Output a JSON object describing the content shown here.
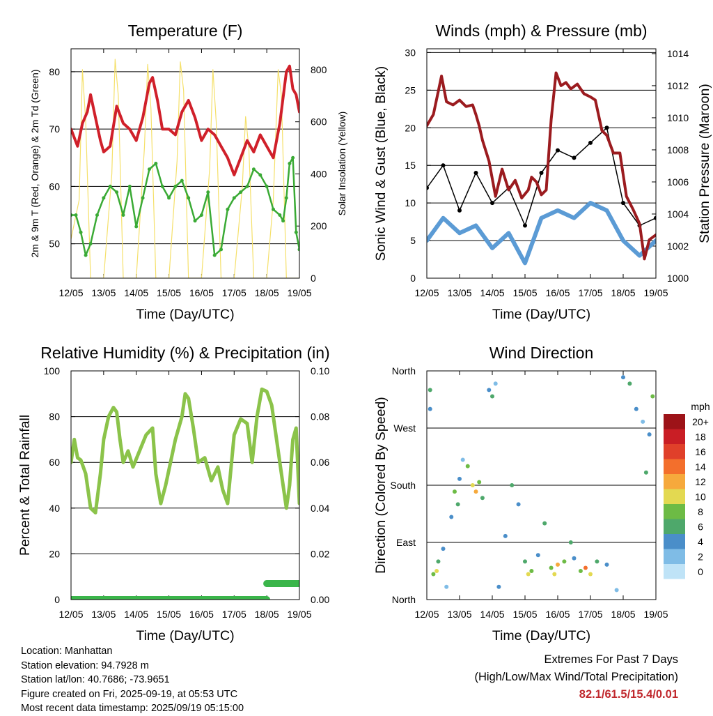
{
  "chart_data": [
    {
      "id": "temperature",
      "type": "line",
      "title": "Temperature (F)",
      "xlabel": "Time (Day/UTC)",
      "ylabel": "2m & 9m T (Red, Orange) & 2m Td (Green)",
      "y2label": "Solar Insolation (Yellow)",
      "xticks": [
        "12/05",
        "13/05",
        "14/05",
        "15/05",
        "16/05",
        "17/05",
        "18/05",
        "19/05"
      ],
      "ylim": [
        44,
        84
      ],
      "yticks": [
        50,
        60,
        70,
        80
      ],
      "y2lim": [
        0,
        880
      ],
      "y2ticks": [
        0,
        200,
        400,
        600,
        800
      ],
      "grid": true,
      "series": [
        {
          "color": "#d0202a",
          "x": [
            0,
            0.2,
            0.35,
            0.5,
            0.6,
            0.75,
            0.9,
            1,
            1.2,
            1.4,
            1.6,
            1.8,
            2,
            2.2,
            2.4,
            2.5,
            2.65,
            2.8,
            3,
            3.2,
            3.4,
            3.6,
            3.8,
            4,
            4.2,
            4.4,
            4.6,
            4.8,
            5,
            5.2,
            5.4,
            5.6,
            5.8,
            6,
            6.2,
            6.4,
            6.6,
            6.7,
            6.8,
            6.9,
            7
          ],
          "y": [
            70,
            67,
            71,
            73,
            76,
            72,
            68,
            66,
            67,
            74,
            71,
            70,
            68,
            72,
            78,
            79,
            75,
            70,
            70,
            69,
            73,
            75,
            72,
            68,
            70,
            69,
            67,
            65,
            62,
            65,
            68,
            66,
            69,
            67,
            65,
            71,
            80,
            81,
            77,
            76,
            73
          ]
        },
        {
          "color": "#3aaa35",
          "x": [
            0,
            0.15,
            0.3,
            0.45,
            0.6,
            0.8,
            1,
            1.2,
            1.4,
            1.6,
            1.8,
            2,
            2.2,
            2.4,
            2.6,
            2.8,
            3,
            3.2,
            3.4,
            3.6,
            3.8,
            4,
            4.2,
            4.4,
            4.6,
            4.8,
            5,
            5.2,
            5.4,
            5.6,
            5.8,
            6,
            6.2,
            6.4,
            6.5,
            6.6,
            6.7,
            6.8,
            6.9,
            7
          ],
          "y": [
            55,
            55,
            52,
            48,
            50,
            55,
            58,
            60,
            59,
            55,
            60,
            53,
            58,
            63,
            64,
            60,
            58,
            60,
            61,
            58,
            54,
            55,
            59,
            48,
            49,
            56,
            58,
            59,
            60,
            63,
            62,
            60,
            56,
            55,
            54,
            58,
            64,
            65,
            52,
            49
          ]
        },
        {
          "color": "#f5e06a",
          "x": [
            0,
            0.25,
            0.35,
            0.45,
            0.6,
            1,
            1.25,
            1.35,
            1.45,
            1.6,
            2,
            2.25,
            2.35,
            2.45,
            2.6,
            3,
            3.25,
            3.35,
            3.45,
            3.6,
            4,
            4.25,
            4.35,
            4.45,
            4.6,
            5,
            5.25,
            5.35,
            5.45,
            5.6,
            6,
            6.2,
            6.35,
            6.45,
            6.6,
            7
          ],
          "y": [
            150,
            300,
            800,
            600,
            0,
            0,
            400,
            840,
            700,
            0,
            0,
            500,
            820,
            650,
            0,
            0,
            450,
            830,
            720,
            0,
            0,
            420,
            800,
            600,
            0,
            0,
            350,
            620,
            500,
            0,
            0,
            300,
            800,
            700,
            0,
            0
          ]
        }
      ]
    },
    {
      "id": "winds",
      "type": "scatter",
      "title": "Winds (mph) & Pressure (mb)",
      "xlabel": "Time (Day/UTC)",
      "ylabel": "Sonic Wind & Gust (Blue, Black)",
      "y2label": "Station Pressure (Maroon)",
      "xticks": [
        "12/05",
        "13/05",
        "14/05",
        "15/05",
        "16/05",
        "17/05",
        "18/05",
        "19/05"
      ],
      "ylim": [
        0,
        30.5
      ],
      "yticks": [
        0,
        5,
        10,
        15,
        20,
        25,
        30
      ],
      "y2lim": [
        1000,
        1014.3
      ],
      "y2ticks": [
        1000,
        1002,
        1004,
        1006,
        1008,
        1010,
        1012,
        1014
      ],
      "grid": true,
      "series": [
        {
          "color": "#5b9bd5",
          "x": [
            0,
            0.5,
            1,
            1.5,
            2,
            2.5,
            3,
            3.5,
            4,
            4.5,
            5,
            5.5,
            6,
            6.5,
            7
          ],
          "y": [
            5,
            8,
            6,
            7,
            4,
            6,
            2,
            8,
            9,
            8,
            10,
            9,
            5,
            3,
            5
          ]
        },
        {
          "color": "#000000",
          "x": [
            0,
            0.5,
            1,
            1.5,
            2,
            2.5,
            3,
            3.5,
            4,
            4.5,
            5,
            5.5,
            6,
            6.5,
            7
          ],
          "y": [
            12,
            15,
            9,
            14,
            10,
            12,
            7,
            14,
            17,
            16,
            18,
            20,
            10,
            7,
            8
          ]
        },
        {
          "color": "#9b1b1f",
          "x": [
            0,
            0.2,
            0.45,
            0.6,
            0.8,
            1,
            1.2,
            1.4,
            1.5,
            1.6,
            1.7,
            1.9,
            2.1,
            2.3,
            2.5,
            2.7,
            2.9,
            3.1,
            3.2,
            3.35,
            3.5,
            3.65,
            3.8,
            3.95,
            4.1,
            4.25,
            4.4,
            4.6,
            4.8,
            5,
            5.15,
            5.35,
            5.5,
            5.7,
            5.9,
            6.1,
            6.3,
            6.5,
            6.65,
            6.8,
            7
          ],
          "y": [
            1009.5,
            1010.2,
            1012.6,
            1011,
            1010.8,
            1011.1,
            1010.7,
            1010.8,
            1010.2,
            1009.5,
            1008.6,
            1007.3,
            1005.1,
            1006.8,
            1005.5,
            1006.1,
            1005,
            1005.5,
            1006.3,
            1006,
            1005.2,
            1005.5,
            1009.9,
            1012.8,
            1012,
            1012.2,
            1011.8,
            1012.1,
            1011.5,
            1011.3,
            1011.1,
            1009.2,
            1008.9,
            1007.8,
            1007.8,
            1005.1,
            1004.3,
            1003.4,
            1001.2,
            1002.4,
            1002.7
          ]
        }
      ]
    },
    {
      "id": "humidity",
      "type": "line",
      "title": "Relative Humidity (%) & Precipitation (in)",
      "xlabel": "Time (Day/UTC)",
      "ylabel": "Percent & Total Rainfall",
      "xticks": [
        "12/05",
        "13/05",
        "14/05",
        "15/05",
        "16/05",
        "17/05",
        "18/05",
        "19/05"
      ],
      "ylim": [
        0,
        100
      ],
      "yticks": [
        0,
        20,
        40,
        60,
        80,
        100
      ],
      "y2lim": [
        0,
        0.1
      ],
      "y2ticks": [
        "0.00",
        "0.02",
        "0.04",
        "0.06",
        "0.08",
        "0.10"
      ],
      "grid": true,
      "series": [
        {
          "color": "#8bc34a",
          "x": [
            0,
            0.1,
            0.2,
            0.3,
            0.45,
            0.6,
            0.75,
            0.9,
            1,
            1.15,
            1.3,
            1.4,
            1.5,
            1.6,
            1.75,
            1.9,
            2.1,
            2.3,
            2.5,
            2.6,
            2.75,
            2.9,
            3.05,
            3.2,
            3.4,
            3.5,
            3.6,
            3.75,
            3.9,
            4.1,
            4.3,
            4.5,
            4.65,
            4.8,
            5,
            5.2,
            5.4,
            5.55,
            5.7,
            5.85,
            6,
            6.15,
            6.3,
            6.45,
            6.6,
            6.7,
            6.8,
            6.9,
            7
          ],
          "y": [
            60,
            70,
            62,
            61,
            55,
            40,
            38,
            55,
            70,
            80,
            84,
            82,
            70,
            60,
            65,
            58,
            65,
            72,
            75,
            55,
            42,
            50,
            60,
            70,
            80,
            90,
            88,
            75,
            60,
            62,
            52,
            58,
            48,
            42,
            72,
            79,
            77,
            60,
            80,
            92,
            91,
            85,
            70,
            55,
            40,
            50,
            70,
            75,
            42
          ]
        },
        {
          "color": "#3ab54a",
          "x": [
            0,
            6
          ],
          "y": [
            0,
            0
          ]
        },
        {
          "color": "#3ab54a",
          "x": [
            6,
            7
          ],
          "y": [
            7,
            7
          ]
        }
      ]
    },
    {
      "id": "direction",
      "type": "scatter",
      "title": "Wind Direction",
      "xlabel": "Time (Day/UTC)",
      "ylabel": "Direction (Colored By Speed)",
      "xticks": [
        "12/05",
        "13/05",
        "14/05",
        "15/05",
        "16/05",
        "17/05",
        "18/05",
        "19/05"
      ],
      "yticks": [
        "North",
        "East",
        "South",
        "West",
        "North"
      ],
      "ylim": [
        0,
        360
      ],
      "grid": true,
      "colorbar": {
        "title": "mph",
        "labels": [
          "0",
          "2",
          "4",
          "6",
          "8",
          "10",
          "12",
          "14",
          "16",
          "18",
          "20+"
        ],
        "colors": [
          "#bfe3f7",
          "#7fbce6",
          "#4a8ec9",
          "#4ea86b",
          "#6dbb45",
          "#e3d951",
          "#f6a93c",
          "#f36f2c",
          "#e0402a",
          "#c91e25",
          "#9d1318"
        ]
      },
      "points": [
        {
          "x": 0.1,
          "y": 330,
          "s": 6
        },
        {
          "x": 0.1,
          "y": 300,
          "s": 4
        },
        {
          "x": 0.2,
          "y": 40,
          "s": 8
        },
        {
          "x": 0.3,
          "y": 45,
          "s": 10
        },
        {
          "x": 0.35,
          "y": 60,
          "s": 6
        },
        {
          "x": 0.5,
          "y": 80,
          "s": 4
        },
        {
          "x": 0.6,
          "y": 20,
          "s": 2
        },
        {
          "x": 0.75,
          "y": 130,
          "s": 4
        },
        {
          "x": 0.85,
          "y": 170,
          "s": 8
        },
        {
          "x": 0.95,
          "y": 150,
          "s": 6
        },
        {
          "x": 1,
          "y": 190,
          "s": 4
        },
        {
          "x": 1.1,
          "y": 220,
          "s": 2
        },
        {
          "x": 1.25,
          "y": 210,
          "s": 8
        },
        {
          "x": 1.4,
          "y": 180,
          "s": 10
        },
        {
          "x": 1.5,
          "y": 170,
          "s": 12
        },
        {
          "x": 1.6,
          "y": 185,
          "s": 8
        },
        {
          "x": 1.7,
          "y": 160,
          "s": 6
        },
        {
          "x": 1.9,
          "y": 330,
          "s": 4
        },
        {
          "x": 2.0,
          "y": 320,
          "s": 6
        },
        {
          "x": 2.1,
          "y": 340,
          "s": 2
        },
        {
          "x": 2.2,
          "y": 20,
          "s": 4
        },
        {
          "x": 2.4,
          "y": 100,
          "s": 4
        },
        {
          "x": 2.6,
          "y": 180,
          "s": 6
        },
        {
          "x": 2.8,
          "y": 150,
          "s": 4
        },
        {
          "x": 3.0,
          "y": 60,
          "s": 6
        },
        {
          "x": 3.1,
          "y": 40,
          "s": 10
        },
        {
          "x": 3.2,
          "y": 45,
          "s": 8
        },
        {
          "x": 3.4,
          "y": 70,
          "s": 4
        },
        {
          "x": 3.6,
          "y": 120,
          "s": 6
        },
        {
          "x": 3.8,
          "y": 50,
          "s": 8
        },
        {
          "x": 3.9,
          "y": 40,
          "s": 10
        },
        {
          "x": 4.0,
          "y": 55,
          "s": 12
        },
        {
          "x": 4.2,
          "y": 60,
          "s": 8
        },
        {
          "x": 4.4,
          "y": 90,
          "s": 6
        },
        {
          "x": 4.5,
          "y": 65,
          "s": 4
        },
        {
          "x": 4.7,
          "y": 45,
          "s": 8
        },
        {
          "x": 4.85,
          "y": 50,
          "s": 14
        },
        {
          "x": 5.0,
          "y": 40,
          "s": 10
        },
        {
          "x": 5.2,
          "y": 60,
          "s": 6
        },
        {
          "x": 5.5,
          "y": 55,
          "s": 4
        },
        {
          "x": 5.8,
          "y": 15,
          "s": 2
        },
        {
          "x": 6.0,
          "y": 350,
          "s": 4
        },
        {
          "x": 6.2,
          "y": 340,
          "s": 6
        },
        {
          "x": 6.4,
          "y": 300,
          "s": 4
        },
        {
          "x": 6.6,
          "y": 280,
          "s": 2
        },
        {
          "x": 6.7,
          "y": 200,
          "s": 6
        },
        {
          "x": 6.8,
          "y": 260,
          "s": 4
        },
        {
          "x": 6.9,
          "y": 320,
          "s": 8
        }
      ]
    }
  ],
  "info": {
    "location": "Location: Manhattan",
    "elevation": "Station elevation: 94.7928 m",
    "latlon": "Station lat/lon: 40.7686; -73.9651",
    "created": "Figure created on Fri, 2025-09-19, at 05:53 UTC",
    "recent": "Most recent data timestamp: 2025/09/19 05:15:00"
  },
  "extremes": {
    "title": "Extremes For Past 7 Days",
    "subtitle": "(High/Low/Max Wind/Total Precipitation)",
    "values": "82.1/61.5/15.4/0.01"
  }
}
